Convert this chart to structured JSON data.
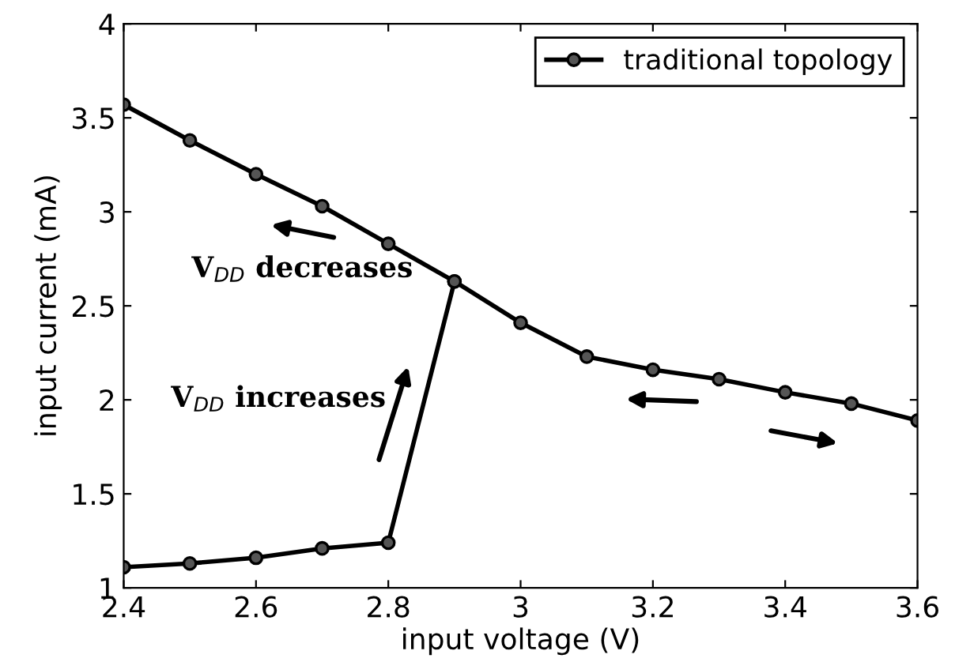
{
  "chart_data": {
    "type": "line",
    "xlabel": "input voltage (V)",
    "ylabel": "input current (mA)",
    "series": [
      {
        "name": "traditional topology",
        "color": "#000000",
        "x": [
          2.4,
          2.5,
          2.6,
          2.7,
          2.8,
          2.9,
          3.0,
          3.1,
          3.2,
          3.3,
          3.4,
          3.5,
          3.6
        ],
        "values": [
          1.11,
          1.13,
          1.16,
          1.21,
          1.24,
          2.63,
          2.41,
          2.23,
          2.16,
          2.11,
          2.04,
          1.98,
          1.89
        ]
      },
      {
        "color": "#000000",
        "x": [
          2.4,
          2.5,
          2.6,
          2.7,
          2.8,
          2.9
        ],
        "values": [
          3.57,
          3.38,
          3.2,
          3.03,
          2.83,
          2.63
        ]
      }
    ],
    "annotations": [
      "V$_{DD}$ decreases",
      "V$_{DD}$ increases"
    ],
    "xlim": [
      2.4,
      3.6
    ],
    "ylim": [
      1,
      4
    ],
    "xticks": [
      2.4,
      2.6,
      2.8,
      3,
      3.2,
      3.4,
      3.6
    ],
    "yticks": [
      1,
      1.5,
      2,
      2.5,
      3,
      3.5,
      4
    ],
    "marker": "circle",
    "line_style": "solid",
    "legend": "top right",
    "grid": false
  }
}
